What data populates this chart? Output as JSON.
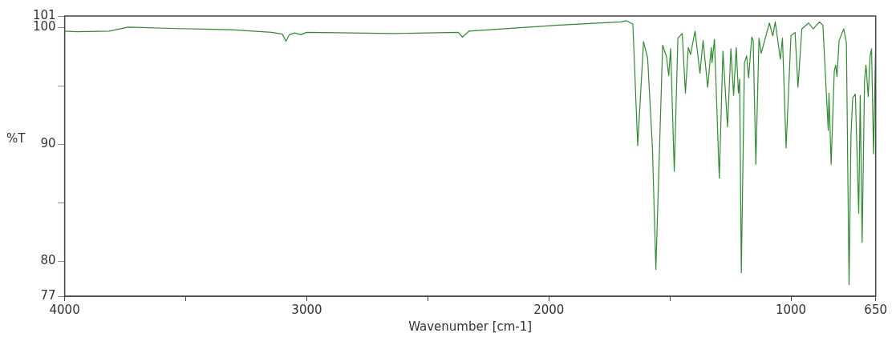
{
  "chart_data": {
    "type": "line",
    "xlabel": "Wavenumber [cm-1]",
    "ylabel": "%T",
    "xlim": [
      4000,
      650
    ],
    "ylim": [
      77,
      101
    ],
    "xticks": [
      4000,
      {
        "value": 3500,
        "label": null
      },
      3000,
      {
        "value": 2500,
        "label": null
      },
      2000,
      {
        "value": 1500,
        "label": null
      },
      1000,
      650
    ],
    "yticks": [
      77,
      80,
      {
        "value": 85,
        "label": null
      },
      90,
      {
        "value": 95,
        "label": null
      },
      100,
      101
    ],
    "grid": false,
    "legend": false,
    "marker": "none",
    "line_style": "solid",
    "series": [
      {
        "color": "#2e8b2e",
        "x": [
          4000,
          3950,
          3816,
          3737,
          3537,
          3313,
          3145,
          3101,
          3086,
          3072,
          3050,
          3025,
          3000,
          2642,
          2374,
          2357,
          2330,
          1972,
          1704,
          1680,
          1653,
          1633,
          1609,
          1592,
          1572,
          1558,
          1530,
          1514,
          1505,
          1497,
          1482,
          1467,
          1449,
          1436,
          1424,
          1415,
          1396,
          1376,
          1363,
          1344,
          1329,
          1326,
          1316,
          1296,
          1281,
          1262,
          1248,
          1237,
          1226,
          1217,
          1212,
          1205,
          1192,
          1183,
          1175,
          1162,
          1156,
          1145,
          1132,
          1123,
          1089,
          1075,
          1065,
          1044,
          1035,
          1020,
          1000,
          983,
          971,
          955,
          927,
          908,
          882,
          868,
          857,
          846,
          843,
          834,
          821,
          815,
          810,
          801,
          782,
          771,
          760,
          752,
          745,
          734,
          720,
          714,
          706,
          696,
          690,
          681,
          673,
          667,
          659,
          650
        ],
        "values": [
          99.7,
          99.66,
          99.7,
          100.05,
          99.92,
          99.83,
          99.6,
          99.45,
          98.84,
          99.4,
          99.55,
          99.4,
          99.6,
          99.5,
          99.6,
          99.2,
          99.7,
          100.2,
          100.5,
          100.6,
          100.3,
          89.9,
          98.8,
          97.4,
          89.6,
          79.3,
          98.5,
          97.5,
          95.9,
          98.2,
          87.7,
          99.1,
          99.5,
          94.4,
          98.3,
          97.7,
          99.7,
          96.1,
          98.9,
          94.9,
          98.3,
          97,
          99,
          87.1,
          98,
          91.5,
          98.2,
          94.2,
          98.3,
          94.4,
          95.6,
          79,
          97,
          97.6,
          95.7,
          99.2,
          98.9,
          88.3,
          99.1,
          97.8,
          100.4,
          99.3,
          100.5,
          97.3,
          99.1,
          89.7,
          99.3,
          99.6,
          94.9,
          99.9,
          100.4,
          99.9,
          100.5,
          100.2,
          95.7,
          91.2,
          94.4,
          88.3,
          96.3,
          96.8,
          95.8,
          98.9,
          99.9,
          98.7,
          78,
          90.8,
          94,
          94.3,
          84.1,
          94.2,
          81.6,
          95.5,
          96.8,
          94.1,
          97.6,
          98.2,
          89.2,
          98.5
        ]
      }
    ]
  }
}
